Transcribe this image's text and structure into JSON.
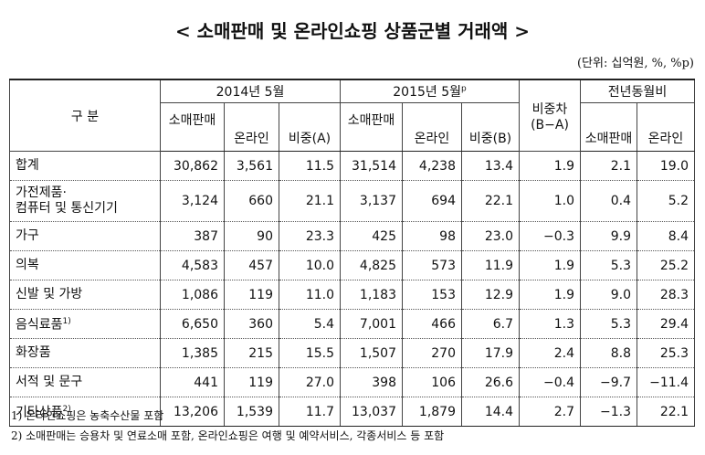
{
  "title": "< 소매판매 및 온라인쇼핑 상품군별 거래액 >",
  "unit": "(단위: 십억원, %, %p)",
  "table": {
    "header": {
      "category": "구  분",
      "period_a": "2014년 5월",
      "period_b": "2015년 5월",
      "period_b_sup": "p",
      "diff": [
        "비중차",
        "(B−A)"
      ],
      "yoy": "전년동월비",
      "sub": [
        "소매판매",
        "온라인",
        "비중(A)",
        "소매판매",
        "온라인",
        "비중(B)",
        "소매판매",
        "온라인"
      ]
    },
    "rows": [
      {
        "label": [
          "합계"
        ],
        "cells": [
          "30,862",
          "3,561",
          "11.5",
          "31,514",
          "4,238",
          "13.4",
          "1.9",
          "2.1",
          "19.0"
        ]
      },
      {
        "label": [
          "가전제품·",
          "컴퓨터 및 통신기기"
        ],
        "cells": [
          "3,124",
          "660",
          "21.1",
          "3,137",
          "694",
          "22.1",
          "1.0",
          "0.4",
          "5.2"
        ]
      },
      {
        "label": [
          "가구"
        ],
        "cells": [
          "387",
          "90",
          "23.3",
          "425",
          "98",
          "23.0",
          "−0.3",
          "9.9",
          "8.4"
        ]
      },
      {
        "label": [
          "의복"
        ],
        "cells": [
          "4,583",
          "457",
          "10.0",
          "4,825",
          "573",
          "11.9",
          "1.9",
          "5.3",
          "25.2"
        ]
      },
      {
        "label": [
          "신발 및 가방"
        ],
        "cells": [
          "1,086",
          "119",
          "11.0",
          "1,183",
          "153",
          "12.9",
          "1.9",
          "9.0",
          "28.3"
        ]
      },
      {
        "label": [
          "음식료품"
        ],
        "sup": "1)",
        "cells": [
          "6,650",
          "360",
          "5.4",
          "7,001",
          "466",
          "6.7",
          "1.3",
          "5.3",
          "29.4"
        ]
      },
      {
        "label": [
          "화장품"
        ],
        "cells": [
          "1,385",
          "215",
          "15.5",
          "1,507",
          "270",
          "17.9",
          "2.4",
          "8.8",
          "25.3"
        ]
      },
      {
        "label": [
          "서적 및 문구"
        ],
        "cells": [
          "441",
          "119",
          "27.0",
          "398",
          "106",
          "26.6",
          "−0.4",
          "−9.7",
          "−11.4"
        ]
      },
      {
        "label": [
          "기타상품"
        ],
        "sup": "2)",
        "cells": [
          "13,206",
          "1,539",
          "11.7",
          "13,037",
          "1,879",
          "14.4",
          "2.7",
          "−1.3",
          "22.1"
        ]
      }
    ]
  },
  "notes": [
    "1) 온라인쇼핑은 농축수산물 포함",
    "2) 소매판매는 승용차 및 연료소매 포함, 온라인쇼핑은 여행 및 예약서비스, 각종서비스 등 포함"
  ]
}
